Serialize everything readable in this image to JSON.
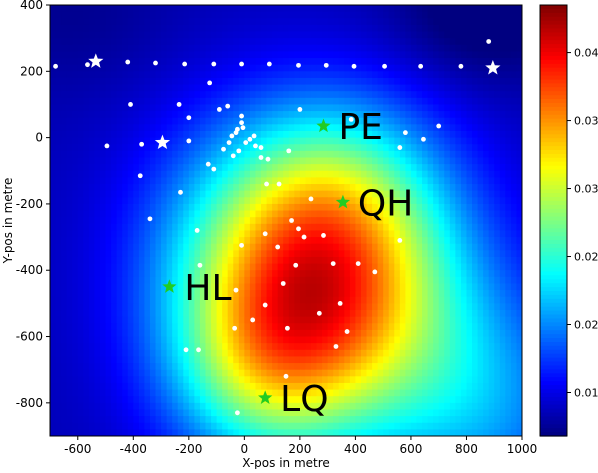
{
  "chart_data": {
    "type": "heatmap",
    "title": "",
    "xlabel": "X-pos in metre",
    "ylabel": "Y-pos in metre",
    "xlim": [
      -700,
      1000
    ],
    "ylim": [
      -900,
      400
    ],
    "x_ticks": [
      -600,
      -400,
      -200,
      0,
      200,
      400,
      600,
      800,
      1000
    ],
    "y_ticks": [
      -800,
      -600,
      -400,
      -200,
      0,
      200,
      400
    ],
    "colormap": "jet",
    "colorbar": {
      "range": [
        0.0118,
        0.0435
      ],
      "ticks": [
        "0.015",
        "0.020",
        "0.025",
        "0.030",
        "0.035",
        "0.040"
      ],
      "tick_values": [
        0.015,
        0.02,
        0.025,
        0.03,
        0.035,
        0.04
      ]
    },
    "field_peak": {
      "x": 300,
      "y": -480,
      "value": 0.0435
    },
    "labeled_stations": [
      {
        "label": "PE",
        "x": 285,
        "y": 35,
        "color": "#22cc22"
      },
      {
        "label": "QH",
        "x": 355,
        "y": -195,
        "color": "#22cc22"
      },
      {
        "label": "HL",
        "x": -270,
        "y": -450,
        "color": "#22cc22"
      },
      {
        "label": "LQ",
        "x": 75,
        "y": -785,
        "color": "#22cc22"
      }
    ],
    "white_stars": [
      {
        "x": -535,
        "y": 230
      },
      {
        "x": 895,
        "y": 210
      },
      {
        "x": -295,
        "y": -15
      }
    ],
    "white_points": [
      [
        -680,
        215
      ],
      [
        -565,
        220
      ],
      [
        -420,
        228
      ],
      [
        -320,
        225
      ],
      [
        -215,
        222
      ],
      [
        -110,
        222
      ],
      [
        -10,
        222
      ],
      [
        90,
        222
      ],
      [
        195,
        218
      ],
      [
        295,
        218
      ],
      [
        395,
        215
      ],
      [
        505,
        215
      ],
      [
        635,
        215
      ],
      [
        780,
        215
      ],
      [
        880,
        290
      ],
      [
        -495,
        -25
      ],
      [
        -375,
        -115
      ],
      [
        -370,
        -20
      ],
      [
        -340,
        -245
      ],
      [
        -410,
        100
      ],
      [
        -235,
        100
      ],
      [
        -200,
        60
      ],
      [
        -125,
        165
      ],
      [
        -90,
        85
      ],
      [
        -60,
        95
      ],
      [
        -200,
        -10
      ],
      [
        -230,
        -165
      ],
      [
        -170,
        -280
      ],
      [
        -160,
        -385
      ],
      [
        -130,
        -80
      ],
      [
        -110,
        -95
      ],
      [
        -75,
        -35
      ],
      [
        -55,
        -15
      ],
      [
        -45,
        5
      ],
      [
        -30,
        15
      ],
      [
        -25,
        25
      ],
      [
        -10,
        45
      ],
      [
        -10,
        65
      ],
      [
        -5,
        30
      ],
      [
        5,
        -15
      ],
      [
        -20,
        -40
      ],
      [
        -40,
        -55
      ],
      [
        20,
        -5
      ],
      [
        35,
        5
      ],
      [
        40,
        -25
      ],
      [
        60,
        -60
      ],
      [
        85,
        -65
      ],
      [
        125,
        -140
      ],
      [
        160,
        -40
      ],
      [
        60,
        -30
      ],
      [
        80,
        -140
      ],
      [
        75,
        -290
      ],
      [
        -10,
        -325
      ],
      [
        120,
        -330
      ],
      [
        195,
        -275
      ],
      [
        240,
        -185
      ],
      [
        170,
        -250
      ],
      [
        215,
        -300
      ],
      [
        285,
        -295
      ],
      [
        140,
        -440
      ],
      [
        155,
        -575
      ],
      [
        30,
        -550
      ],
      [
        -35,
        -575
      ],
      [
        -165,
        -640
      ],
      [
        -210,
        -640
      ],
      [
        -25,
        -830
      ],
      [
        185,
        -385
      ],
      [
        320,
        -380
      ],
      [
        345,
        -500
      ],
      [
        270,
        -530
      ],
      [
        370,
        -585
      ],
      [
        330,
        -630
      ],
      [
        75,
        -505
      ],
      [
        -30,
        -460
      ],
      [
        560,
        -310
      ],
      [
        470,
        -405
      ],
      [
        560,
        -30
      ],
      [
        580,
        15
      ],
      [
        645,
        -5
      ],
      [
        700,
        35
      ],
      [
        385,
        55
      ],
      [
        200,
        85
      ],
      [
        150,
        -720
      ],
      [
        410,
        -380
      ]
    ]
  }
}
